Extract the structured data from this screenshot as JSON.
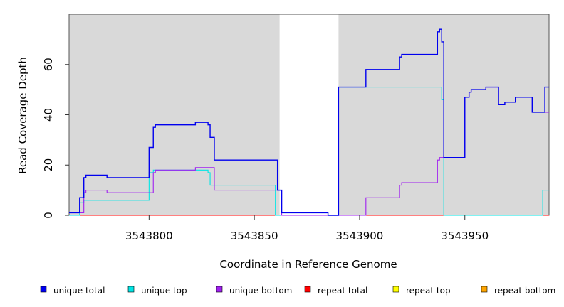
{
  "chart_data": {
    "type": "line",
    "title": "",
    "xlabel": "Coordinate in Reference Genome",
    "ylabel": "Read Coverage Depth",
    "xlim": [
      3543762,
      3543990
    ],
    "ylim": [
      0,
      80
    ],
    "x_ticks": [
      3543800,
      3543850,
      3543900,
      3543950
    ],
    "x_tick_labels": [
      "3543800",
      "3543850",
      "3543900",
      "3543950"
    ],
    "y_ticks": [
      0,
      20,
      40,
      60
    ],
    "y_tick_labels": [
      "0",
      "20",
      "40",
      "60"
    ],
    "shaded_regions": [
      [
        3543762,
        3543862
      ],
      [
        3543890,
        3543990
      ]
    ],
    "shade_color": "#d9d9d9",
    "legend_position": "bottom",
    "series": [
      {
        "name": "unique total",
        "color": "#0000ee",
        "points": [
          [
            3543762,
            1
          ],
          [
            3543767,
            7
          ],
          [
            3543769,
            15
          ],
          [
            3543770,
            16
          ],
          [
            3543780,
            15
          ],
          [
            3543800,
            27
          ],
          [
            3543802,
            35
          ],
          [
            3543803,
            36
          ],
          [
            3543822,
            37
          ],
          [
            3543828,
            36
          ],
          [
            3543829,
            31
          ],
          [
            3543831,
            22
          ],
          [
            3543861,
            10
          ],
          [
            3543863,
            1
          ],
          [
            3543885,
            0
          ],
          [
            3543889,
            0
          ],
          [
            3543890,
            51
          ],
          [
            3543903,
            58
          ],
          [
            3543919,
            63
          ],
          [
            3543920,
            64
          ],
          [
            3543937,
            73
          ],
          [
            3543938,
            74
          ],
          [
            3543939,
            69
          ],
          [
            3543940,
            23
          ],
          [
            3543950,
            47
          ],
          [
            3543952,
            49
          ],
          [
            3543953,
            50
          ],
          [
            3543960,
            51
          ],
          [
            3543966,
            44
          ],
          [
            3543969,
            45
          ],
          [
            3543974,
            47
          ],
          [
            3543982,
            41
          ],
          [
            3543988,
            51
          ],
          [
            3543990,
            51
          ]
        ]
      },
      {
        "name": "unique top",
        "color": "#00e5e5",
        "points": [
          [
            3543762,
            0
          ],
          [
            3543767,
            5
          ],
          [
            3543769,
            6
          ],
          [
            3543800,
            17
          ],
          [
            3543802,
            18
          ],
          [
            3543828,
            17
          ],
          [
            3543829,
            12
          ],
          [
            3543860,
            0
          ],
          [
            3543889,
            0
          ],
          [
            3543890,
            51
          ],
          [
            3543939,
            46
          ],
          [
            3543940,
            0
          ],
          [
            3543987,
            10
          ],
          [
            3543990,
            10
          ]
        ]
      },
      {
        "name": "unique bottom",
        "color": "#a020f0",
        "points": [
          [
            3543762,
            1
          ],
          [
            3543767,
            1
          ],
          [
            3543769,
            9
          ],
          [
            3543770,
            10
          ],
          [
            3543780,
            9
          ],
          [
            3543802,
            17
          ],
          [
            3543803,
            18
          ],
          [
            3543822,
            19
          ],
          [
            3543831,
            10
          ],
          [
            3543861,
            10
          ],
          [
            3543863,
            0
          ],
          [
            3543889,
            0
          ],
          [
            3543903,
            7
          ],
          [
            3543919,
            12
          ],
          [
            3543920,
            13
          ],
          [
            3543937,
            22
          ],
          [
            3543938,
            23
          ],
          [
            3543940,
            23
          ],
          [
            3543950,
            47
          ],
          [
            3543952,
            49
          ],
          [
            3543953,
            50
          ],
          [
            3543960,
            51
          ],
          [
            3543966,
            44
          ],
          [
            3543969,
            45
          ],
          [
            3543974,
            47
          ],
          [
            3543982,
            41
          ],
          [
            3543988,
            41
          ],
          [
            3543990,
            41
          ]
        ]
      },
      {
        "name": "repeat total",
        "color": "#ff0000",
        "points": [
          [
            3543762,
            0
          ],
          [
            3543990,
            0
          ]
        ]
      },
      {
        "name": "repeat top",
        "color": "#ffff00",
        "points": [
          [
            3543762,
            0
          ],
          [
            3543990,
            0
          ]
        ]
      },
      {
        "name": "repeat bottom",
        "color": "#ffa500",
        "points": [
          [
            3543762,
            0
          ],
          [
            3543990,
            0
          ]
        ]
      }
    ]
  }
}
